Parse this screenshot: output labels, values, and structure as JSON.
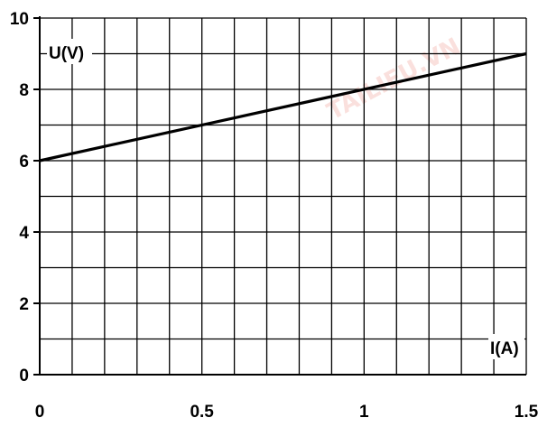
{
  "chart_data": {
    "type": "line",
    "xlabel": "I(A)",
    "ylabel": "U(V)",
    "xlim": [
      0,
      1.5
    ],
    "ylim": [
      0,
      10
    ],
    "x_ticks": [
      "0",
      "0.5",
      "1",
      "1.5"
    ],
    "y_ticks": [
      "0",
      "2",
      "4",
      "6",
      "8",
      "10"
    ],
    "grid": true,
    "series": [
      {
        "x": [
          0,
          1.5
        ],
        "y": [
          6,
          9
        ]
      }
    ]
  },
  "watermark": {
    "text": "TAILIEU.VN"
  },
  "colors": {
    "grid": "#000000",
    "line": "#000000",
    "watermark": "#f2a7a0"
  }
}
